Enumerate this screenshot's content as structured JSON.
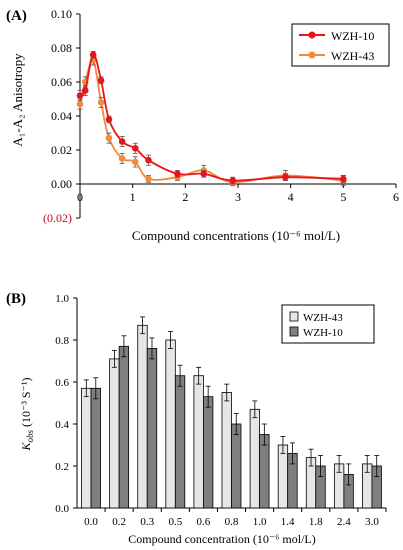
{
  "chart_data": [
    {
      "panel_label": "(A)",
      "type": "line",
      "xlabel": "Compound concentrations (10⁻⁶ mol/L)",
      "ylabel": "A₁-A₂ Anisotropy",
      "xlim": [
        0,
        6
      ],
      "ylim": [
        -0.02,
        0.1
      ],
      "x_ticks": [
        "0",
        "1",
        "2",
        "3",
        "4",
        "5",
        "6"
      ],
      "y_ticks": [
        "0.10",
        "0.08",
        "0.06",
        "0.04",
        "0.02",
        "0.00",
        "(0.02)"
      ],
      "y_tick_values": [
        0.1,
        0.08,
        0.06,
        0.04,
        0.02,
        0.0,
        -0.02
      ],
      "grid": false,
      "legend_position": "top-right",
      "series": [
        {
          "name": "WZH-10",
          "color": "#e8141b",
          "marker": "circle",
          "x": [
            0,
            0.1,
            0.25,
            0.4,
            0.55,
            0.8,
            1.05,
            1.3,
            1.85,
            2.35,
            2.9,
            3.9,
            5.0
          ],
          "y": [
            0.052,
            0.055,
            0.076,
            0.061,
            0.038,
            0.025,
            0.021,
            0.014,
            0.006,
            0.006,
            0.002,
            0.004,
            0.003
          ],
          "err": [
            0.003,
            0.003,
            0.002,
            0.002,
            0.002,
            0.003,
            0.003,
            0.003,
            0.002,
            0.002,
            0.002,
            0.002,
            0.002
          ]
        },
        {
          "name": "WZH-43",
          "color": "#f08a3c",
          "marker": "circle",
          "x": [
            0,
            0.1,
            0.25,
            0.4,
            0.55,
            0.8,
            1.05,
            1.3,
            1.85,
            2.35,
            2.9,
            3.9,
            5.0
          ],
          "y": [
            0.047,
            0.06,
            0.073,
            0.048,
            0.027,
            0.015,
            0.013,
            0.003,
            0.004,
            0.008,
            0.001,
            0.005,
            0.002
          ],
          "err": [
            0.003,
            0.003,
            0.003,
            0.003,
            0.003,
            0.003,
            0.003,
            0.002,
            0.002,
            0.003,
            0.002,
            0.003,
            0.003
          ]
        }
      ]
    },
    {
      "panel_label": "(B)",
      "type": "bar",
      "xlabel": "Compound concentration (10⁻⁶ mol/L)",
      "ylabel_main": "K",
      "ylabel_sub": "obs",
      "ylabel_unit": "(10⁻³ S⁻¹)",
      "categories": [
        "0.0",
        "0.2",
        "0.3",
        "0.5",
        "0.6",
        "0.8",
        "1.0",
        "1.4",
        "1.8",
        "2.4",
        "3.0"
      ],
      "ylim": [
        0,
        1.0
      ],
      "y_ticks": [
        "0.0",
        "0.2",
        "0.4",
        "0.6",
        "0.8",
        "1.0"
      ],
      "y_tick_values": [
        0.0,
        0.2,
        0.4,
        0.6,
        0.8,
        1.0
      ],
      "grid": false,
      "legend_position": "top-right",
      "series": [
        {
          "name": "WZH-43",
          "color": "#e6e6e6",
          "values": [
            0.57,
            0.71,
            0.87,
            0.8,
            0.63,
            0.55,
            0.47,
            0.3,
            0.24,
            0.21,
            0.21
          ],
          "err": [
            0.04,
            0.04,
            0.04,
            0.04,
            0.04,
            0.04,
            0.04,
            0.04,
            0.04,
            0.04,
            0.04
          ]
        },
        {
          "name": "WZH-10",
          "color": "#7f7f7f",
          "values": [
            0.57,
            0.77,
            0.76,
            0.63,
            0.53,
            0.4,
            0.35,
            0.26,
            0.2,
            0.16,
            0.2
          ],
          "err": [
            0.05,
            0.05,
            0.05,
            0.05,
            0.05,
            0.05,
            0.05,
            0.05,
            0.05,
            0.05,
            0.05
          ]
        }
      ]
    }
  ]
}
